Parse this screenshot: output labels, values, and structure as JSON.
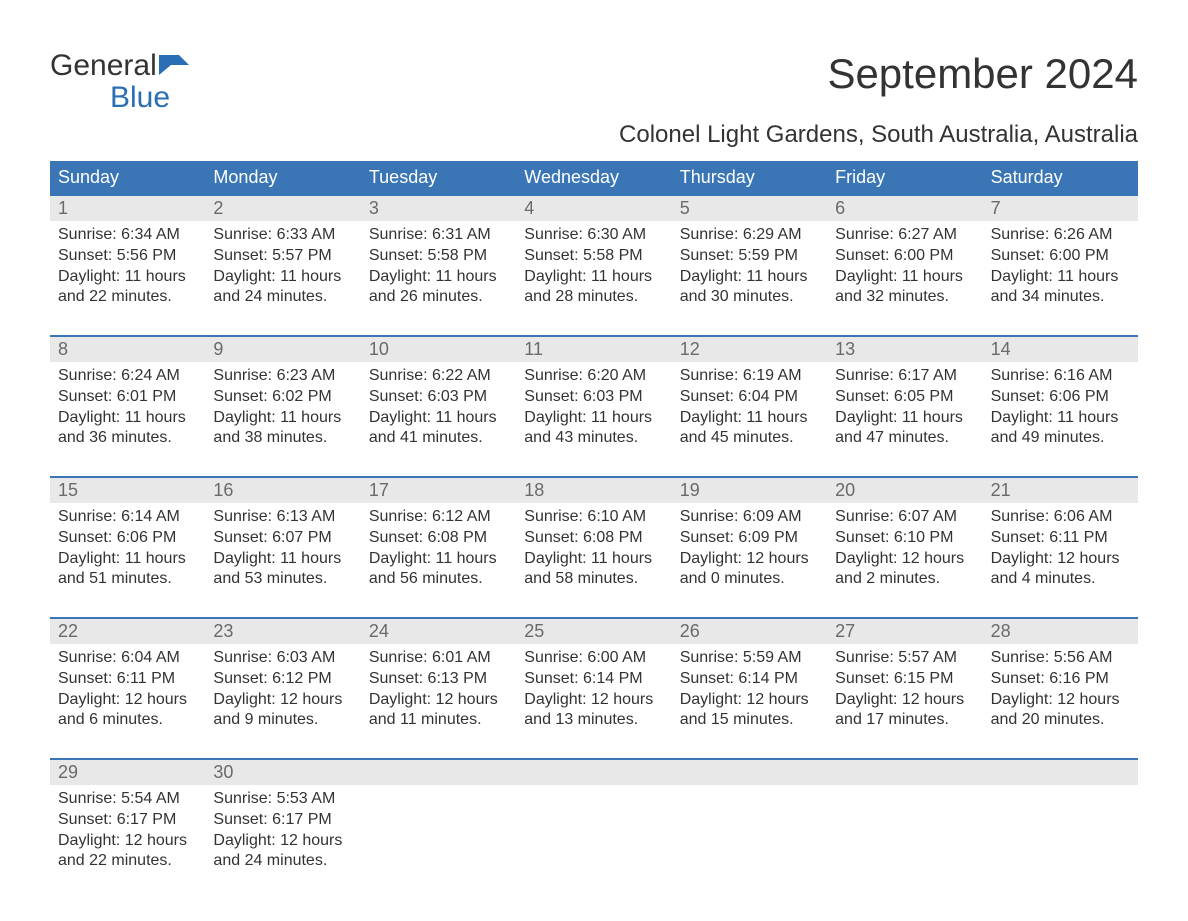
{
  "logo": {
    "text1": "General",
    "text2": "Blue",
    "icon_color": "#2a6fb5"
  },
  "title": "September 2024",
  "subtitle": "Colonel Light Gardens, South Australia, Australia",
  "colors": {
    "header_bg": "#3a76b6",
    "header_text": "#ffffff",
    "daynum_bg": "#e8e8e8",
    "daynum_text": "#6a6a6a",
    "body_text": "#333333",
    "accent": "#2a6fb5",
    "page_bg": "#ffffff"
  },
  "layout": {
    "columns": 7,
    "font_family": "Arial"
  },
  "weekdays": [
    "Sunday",
    "Monday",
    "Tuesday",
    "Wednesday",
    "Thursday",
    "Friday",
    "Saturday"
  ],
  "weeks": [
    [
      {
        "num": "1",
        "sunrise": "Sunrise: 6:34 AM",
        "sunset": "Sunset: 5:56 PM",
        "d1": "Daylight: 11 hours",
        "d2": "and 22 minutes."
      },
      {
        "num": "2",
        "sunrise": "Sunrise: 6:33 AM",
        "sunset": "Sunset: 5:57 PM",
        "d1": "Daylight: 11 hours",
        "d2": "and 24 minutes."
      },
      {
        "num": "3",
        "sunrise": "Sunrise: 6:31 AM",
        "sunset": "Sunset: 5:58 PM",
        "d1": "Daylight: 11 hours",
        "d2": "and 26 minutes."
      },
      {
        "num": "4",
        "sunrise": "Sunrise: 6:30 AM",
        "sunset": "Sunset: 5:58 PM",
        "d1": "Daylight: 11 hours",
        "d2": "and 28 minutes."
      },
      {
        "num": "5",
        "sunrise": "Sunrise: 6:29 AM",
        "sunset": "Sunset: 5:59 PM",
        "d1": "Daylight: 11 hours",
        "d2": "and 30 minutes."
      },
      {
        "num": "6",
        "sunrise": "Sunrise: 6:27 AM",
        "sunset": "Sunset: 6:00 PM",
        "d1": "Daylight: 11 hours",
        "d2": "and 32 minutes."
      },
      {
        "num": "7",
        "sunrise": "Sunrise: 6:26 AM",
        "sunset": "Sunset: 6:00 PM",
        "d1": "Daylight: 11 hours",
        "d2": "and 34 minutes."
      }
    ],
    [
      {
        "num": "8",
        "sunrise": "Sunrise: 6:24 AM",
        "sunset": "Sunset: 6:01 PM",
        "d1": "Daylight: 11 hours",
        "d2": "and 36 minutes."
      },
      {
        "num": "9",
        "sunrise": "Sunrise: 6:23 AM",
        "sunset": "Sunset: 6:02 PM",
        "d1": "Daylight: 11 hours",
        "d2": "and 38 minutes."
      },
      {
        "num": "10",
        "sunrise": "Sunrise: 6:22 AM",
        "sunset": "Sunset: 6:03 PM",
        "d1": "Daylight: 11 hours",
        "d2": "and 41 minutes."
      },
      {
        "num": "11",
        "sunrise": "Sunrise: 6:20 AM",
        "sunset": "Sunset: 6:03 PM",
        "d1": "Daylight: 11 hours",
        "d2": "and 43 minutes."
      },
      {
        "num": "12",
        "sunrise": "Sunrise: 6:19 AM",
        "sunset": "Sunset: 6:04 PM",
        "d1": "Daylight: 11 hours",
        "d2": "and 45 minutes."
      },
      {
        "num": "13",
        "sunrise": "Sunrise: 6:17 AM",
        "sunset": "Sunset: 6:05 PM",
        "d1": "Daylight: 11 hours",
        "d2": "and 47 minutes."
      },
      {
        "num": "14",
        "sunrise": "Sunrise: 6:16 AM",
        "sunset": "Sunset: 6:06 PM",
        "d1": "Daylight: 11 hours",
        "d2": "and 49 minutes."
      }
    ],
    [
      {
        "num": "15",
        "sunrise": "Sunrise: 6:14 AM",
        "sunset": "Sunset: 6:06 PM",
        "d1": "Daylight: 11 hours",
        "d2": "and 51 minutes."
      },
      {
        "num": "16",
        "sunrise": "Sunrise: 6:13 AM",
        "sunset": "Sunset: 6:07 PM",
        "d1": "Daylight: 11 hours",
        "d2": "and 53 minutes."
      },
      {
        "num": "17",
        "sunrise": "Sunrise: 6:12 AM",
        "sunset": "Sunset: 6:08 PM",
        "d1": "Daylight: 11 hours",
        "d2": "and 56 minutes."
      },
      {
        "num": "18",
        "sunrise": "Sunrise: 6:10 AM",
        "sunset": "Sunset: 6:08 PM",
        "d1": "Daylight: 11 hours",
        "d2": "and 58 minutes."
      },
      {
        "num": "19",
        "sunrise": "Sunrise: 6:09 AM",
        "sunset": "Sunset: 6:09 PM",
        "d1": "Daylight: 12 hours",
        "d2": "and 0 minutes."
      },
      {
        "num": "20",
        "sunrise": "Sunrise: 6:07 AM",
        "sunset": "Sunset: 6:10 PM",
        "d1": "Daylight: 12 hours",
        "d2": "and 2 minutes."
      },
      {
        "num": "21",
        "sunrise": "Sunrise: 6:06 AM",
        "sunset": "Sunset: 6:11 PM",
        "d1": "Daylight: 12 hours",
        "d2": "and 4 minutes."
      }
    ],
    [
      {
        "num": "22",
        "sunrise": "Sunrise: 6:04 AM",
        "sunset": "Sunset: 6:11 PM",
        "d1": "Daylight: 12 hours",
        "d2": "and 6 minutes."
      },
      {
        "num": "23",
        "sunrise": "Sunrise: 6:03 AM",
        "sunset": "Sunset: 6:12 PM",
        "d1": "Daylight: 12 hours",
        "d2": "and 9 minutes."
      },
      {
        "num": "24",
        "sunrise": "Sunrise: 6:01 AM",
        "sunset": "Sunset: 6:13 PM",
        "d1": "Daylight: 12 hours",
        "d2": "and 11 minutes."
      },
      {
        "num": "25",
        "sunrise": "Sunrise: 6:00 AM",
        "sunset": "Sunset: 6:14 PM",
        "d1": "Daylight: 12 hours",
        "d2": "and 13 minutes."
      },
      {
        "num": "26",
        "sunrise": "Sunrise: 5:59 AM",
        "sunset": "Sunset: 6:14 PM",
        "d1": "Daylight: 12 hours",
        "d2": "and 15 minutes."
      },
      {
        "num": "27",
        "sunrise": "Sunrise: 5:57 AM",
        "sunset": "Sunset: 6:15 PM",
        "d1": "Daylight: 12 hours",
        "d2": "and 17 minutes."
      },
      {
        "num": "28",
        "sunrise": "Sunrise: 5:56 AM",
        "sunset": "Sunset: 6:16 PM",
        "d1": "Daylight: 12 hours",
        "d2": "and 20 minutes."
      }
    ],
    [
      {
        "num": "29",
        "sunrise": "Sunrise: 5:54 AM",
        "sunset": "Sunset: 6:17 PM",
        "d1": "Daylight: 12 hours",
        "d2": "and 22 minutes."
      },
      {
        "num": "30",
        "sunrise": "Sunrise: 5:53 AM",
        "sunset": "Sunset: 6:17 PM",
        "d1": "Daylight: 12 hours",
        "d2": "and 24 minutes."
      },
      {
        "empty": true
      },
      {
        "empty": true
      },
      {
        "empty": true
      },
      {
        "empty": true
      },
      {
        "empty": true
      }
    ]
  ]
}
